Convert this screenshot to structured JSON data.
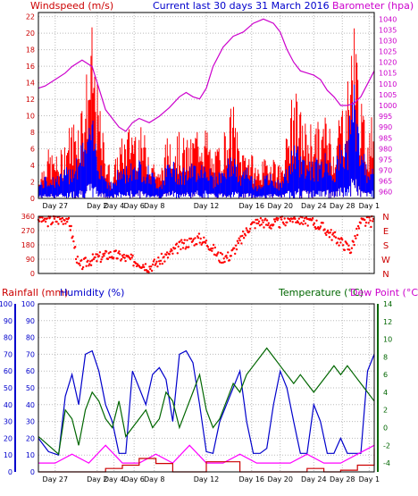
{
  "header": {
    "left_title": "Windspeed (m/s)",
    "center_title": "Current last 30 days 31 March 2016",
    "right_title": "Barometer (hpa)"
  },
  "bottom_header": {
    "rain_label": "Rainfall (mm)",
    "humidity_label": "Humidity (%)",
    "temp_label": "Temperature (°C)",
    "dew_label": "Dew Point (°C)"
  },
  "colors": {
    "wind_gust": "#ff0000",
    "wind_avg": "#0000ff",
    "barometer": "#cc00cc",
    "direction": "#ff0000",
    "humidity": "#0000cc",
    "temperature": "#006600",
    "dewpoint": "#ff00ff",
    "rainfall": "#cc0000",
    "grid": "#bbbbbb"
  },
  "chart_data": [
    {
      "type": "line",
      "name": "wind-barometer",
      "x_labels": [
        "Day 27",
        "Day 2",
        "Day 4",
        "Day 6",
        "Day 8",
        "Day 12",
        "Day 16",
        "Day 20",
        "Day 24",
        "Day 28",
        "Day 1"
      ],
      "y_left_ticks": [
        0,
        2,
        4,
        6,
        8,
        10,
        12,
        14,
        16,
        18,
        20,
        22
      ],
      "y_left_range": [
        0,
        22.5
      ],
      "y_right_ticks": [
        960,
        965,
        970,
        975,
        980,
        985,
        990,
        995,
        1000,
        1005,
        1010,
        1015,
        1020,
        1025,
        1030,
        1035,
        1040
      ],
      "y_right_range": [
        957,
        1043
      ],
      "series": [
        {
          "name": "barometer",
          "axis": "right",
          "x": [
            0,
            0.02,
            0.05,
            0.08,
            0.1,
            0.13,
            0.16,
            0.18,
            0.2,
            0.22,
            0.24,
            0.26,
            0.28,
            0.3,
            0.33,
            0.36,
            0.39,
            0.42,
            0.44,
            0.46,
            0.48,
            0.5,
            0.52,
            0.55,
            0.58,
            0.61,
            0.64,
            0.67,
            0.7,
            0.72,
            0.74,
            0.76,
            0.78,
            0.8,
            0.82,
            0.84,
            0.86,
            0.88,
            0.9,
            0.92,
            0.94,
            0.96,
            0.98,
            1.0
          ],
          "y": [
            1008,
            1009,
            1012,
            1015,
            1018,
            1021,
            1018,
            1008,
            998,
            994,
            990,
            988,
            992,
            994,
            992,
            995,
            999,
            1004,
            1006,
            1004,
            1003,
            1008,
            1018,
            1027,
            1032,
            1034,
            1038,
            1040,
            1038,
            1034,
            1026,
            1020,
            1016,
            1015,
            1014,
            1012,
            1007,
            1004,
            1000,
            1000,
            1001,
            1004,
            1010,
            1016
          ]
        },
        {
          "name": "gust_envelope",
          "axis": "left",
          "x": [
            0,
            0.03,
            0.06,
            0.09,
            0.12,
            0.14,
            0.16,
            0.18,
            0.2,
            0.22,
            0.24,
            0.26,
            0.28,
            0.3,
            0.33,
            0.36,
            0.39,
            0.42,
            0.45,
            0.48,
            0.5,
            0.52,
            0.55,
            0.58,
            0.6,
            0.62,
            0.65,
            0.68,
            0.7,
            0.72,
            0.74,
            0.76,
            0.78,
            0.8,
            0.82,
            0.84,
            0.86,
            0.88,
            0.9,
            0.92,
            0.94,
            0.96,
            0.98,
            1.0
          ],
          "y": [
            3,
            6,
            5,
            9,
            11,
            15,
            21,
            12,
            6,
            3,
            7,
            8,
            10,
            9,
            7,
            3,
            9,
            8,
            7,
            10,
            9,
            5,
            8,
            12,
            6,
            7,
            4,
            5,
            6,
            4,
            8,
            14,
            11,
            9,
            10,
            9,
            11,
            7,
            12,
            14,
            24,
            12,
            8,
            12
          ]
        },
        {
          "name": "avg_envelope",
          "axis": "left",
          "x": [
            0,
            0.03,
            0.06,
            0.09,
            0.12,
            0.14,
            0.16,
            0.18,
            0.2,
            0.22,
            0.24,
            0.26,
            0.28,
            0.3,
            0.33,
            0.36,
            0.39,
            0.42,
            0.45,
            0.48,
            0.5,
            0.52,
            0.55,
            0.58,
            0.6,
            0.62,
            0.65,
            0.68,
            0.7,
            0.72,
            0.74,
            0.76,
            0.78,
            0.8,
            0.82,
            0.84,
            0.86,
            0.88,
            0.9,
            0.92,
            0.94,
            0.96,
            0.98,
            1.0
          ],
          "y": [
            2,
            3,
            3,
            4,
            6,
            8,
            10,
            6,
            3,
            2,
            4,
            4,
            5,
            5,
            4,
            2,
            5,
            4,
            4,
            5,
            5,
            3,
            4,
            6,
            3,
            4,
            2,
            3,
            3,
            2,
            4,
            7,
            6,
            5,
            5,
            5,
            6,
            4,
            7,
            8,
            15,
            7,
            4,
            6
          ]
        }
      ]
    },
    {
      "type": "scatter",
      "name": "wind-direction",
      "y_ticks": [
        0,
        90,
        180,
        270,
        360
      ],
      "y_range": [
        0,
        360
      ],
      "compass_labels": [
        "N",
        "W",
        "S",
        "E",
        "N"
      ],
      "x": [
        0.0,
        0.03,
        0.06,
        0.09,
        0.12,
        0.15,
        0.18,
        0.21,
        0.24,
        0.27,
        0.3,
        0.33,
        0.36,
        0.39,
        0.42,
        0.45,
        0.48,
        0.51,
        0.54,
        0.57,
        0.6,
        0.63,
        0.66,
        0.69,
        0.72,
        0.75,
        0.78,
        0.81,
        0.84,
        0.87,
        0.9,
        0.93,
        0.96,
        1.0
      ],
      "y": [
        350,
        330,
        340,
        350,
        40,
        80,
        100,
        120,
        110,
        90,
        70,
        40,
        80,
        120,
        170,
        200,
        220,
        180,
        100,
        110,
        200,
        300,
        330,
        310,
        320,
        350,
        340,
        330,
        300,
        250,
        200,
        150,
        320,
        330
      ]
    },
    {
      "type": "line",
      "name": "rain-humidity-temp",
      "y_left_ticks": [
        0,
        10,
        20,
        30,
        40,
        50,
        60,
        70,
        80,
        90,
        100
      ],
      "y_left_range": [
        0,
        100
      ],
      "y_right_ticks": [
        -4,
        -2,
        0,
        2,
        4,
        6,
        8,
        10,
        12,
        14
      ],
      "y_right_range": [
        -5,
        14
      ],
      "series": [
        {
          "name": "humidity",
          "axis": "left",
          "x": [
            0,
            0.03,
            0.06,
            0.08,
            0.1,
            0.12,
            0.14,
            0.16,
            0.18,
            0.2,
            0.22,
            0.24,
            0.26,
            0.28,
            0.3,
            0.32,
            0.34,
            0.36,
            0.38,
            0.4,
            0.42,
            0.44,
            0.46,
            0.48,
            0.5,
            0.52,
            0.54,
            0.56,
            0.58,
            0.6,
            0.62,
            0.64,
            0.66,
            0.68,
            0.7,
            0.72,
            0.74,
            0.76,
            0.78,
            0.8,
            0.82,
            0.84,
            0.86,
            0.88,
            0.9,
            0.92,
            0.94,
            0.96,
            0.98,
            1.0
          ],
          "y": [
            20,
            12,
            10,
            45,
            58,
            40,
            70,
            72,
            60,
            40,
            30,
            11,
            11,
            60,
            50,
            40,
            58,
            62,
            55,
            30,
            70,
            72,
            65,
            40,
            12,
            11,
            30,
            40,
            50,
            60,
            30,
            11,
            11,
            14,
            40,
            60,
            50,
            30,
            11,
            11,
            40,
            30,
            11,
            11,
            20,
            11,
            11,
            11,
            60,
            70
          ]
        },
        {
          "name": "temperature",
          "axis": "right",
          "x": [
            0,
            0.03,
            0.06,
            0.08,
            0.1,
            0.12,
            0.14,
            0.16,
            0.18,
            0.2,
            0.22,
            0.24,
            0.26,
            0.28,
            0.3,
            0.32,
            0.34,
            0.36,
            0.38,
            0.4,
            0.42,
            0.44,
            0.46,
            0.48,
            0.5,
            0.52,
            0.54,
            0.56,
            0.58,
            0.6,
            0.62,
            0.64,
            0.66,
            0.68,
            0.7,
            0.72,
            0.74,
            0.76,
            0.78,
            0.8,
            0.82,
            0.84,
            0.86,
            0.88,
            0.9,
            0.92,
            0.94,
            0.96,
            0.98,
            1.0
          ],
          "y": [
            -1,
            -2,
            -3,
            2,
            1,
            -2,
            2,
            4,
            3,
            1,
            0,
            3,
            -1,
            0,
            1,
            2,
            0,
            1,
            4,
            3,
            0,
            2,
            4,
            6,
            2,
            0,
            1,
            3,
            5,
            4,
            6,
            7,
            8,
            9,
            8,
            7,
            6,
            5,
            6,
            5,
            4,
            5,
            6,
            7,
            6,
            7,
            6,
            5,
            4,
            3
          ]
        },
        {
          "name": "dewpoint",
          "axis": "right",
          "x": [
            0,
            0.05,
            0.1,
            0.15,
            0.2,
            0.25,
            0.3,
            0.35,
            0.4,
            0.45,
            0.5,
            0.55,
            0.6,
            0.65,
            0.7,
            0.75,
            0.8,
            0.85,
            0.9,
            0.95,
            1.0
          ],
          "y": [
            -4,
            -4,
            -3,
            -4,
            -2,
            -4,
            -4,
            -3,
            -4,
            -2,
            -4,
            -4,
            -3,
            -4,
            -4,
            -4,
            -3,
            -4,
            -4,
            -3,
            -2
          ]
        },
        {
          "name": "rainfall",
          "axis": "left",
          "x": [
            0,
            0.1,
            0.2,
            0.25,
            0.3,
            0.35,
            0.4,
            0.5,
            0.6,
            0.7,
            0.75,
            0.8,
            0.85,
            0.9,
            0.95,
            1.0
          ],
          "y": [
            0,
            0,
            2,
            4,
            8,
            5,
            0,
            6,
            0,
            0,
            0,
            2,
            0,
            1,
            4,
            14
          ]
        }
      ]
    }
  ]
}
